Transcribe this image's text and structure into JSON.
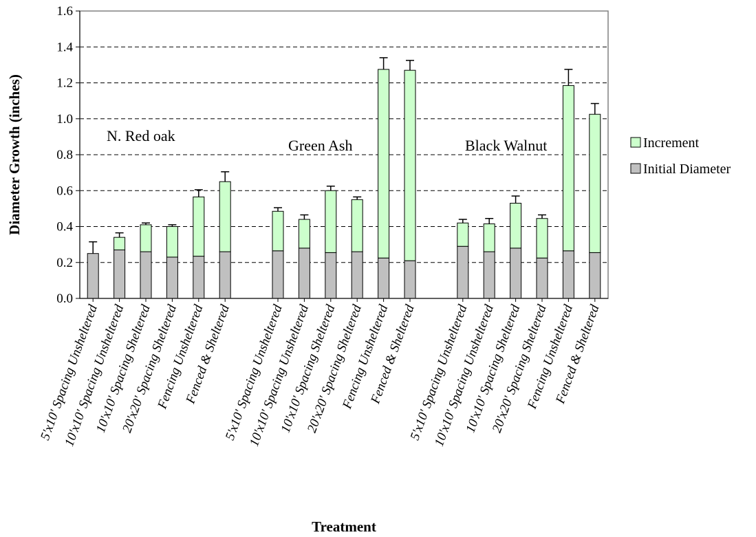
{
  "chart_data": {
    "type": "bar",
    "stacked": true,
    "xlabel": "Treatment",
    "ylabel": "Diameter Growth (inches)",
    "ylim": [
      0,
      1.6
    ],
    "yticks": [
      "0.0",
      "0.2",
      "0.4",
      "0.6",
      "0.8",
      "1.0",
      "1.2",
      "1.4",
      "1.6"
    ],
    "grid": "horizontal dashed",
    "legend_position": "right",
    "groups": [
      {
        "label": "N. Red oak",
        "categories": [
          "5'x10' Spacing Unsheltered",
          "10'x10' Spacing Unsheltered",
          "10'x10' Spacing Sheltered",
          "20'x20' Spacing Sheltered",
          "Fencing Unsheltered",
          "Fenced & Sheltered"
        ],
        "initial": [
          0.25,
          0.27,
          0.26,
          0.23,
          0.235,
          0.26
        ],
        "increment": [
          0.0,
          0.07,
          0.15,
          0.17,
          0.33,
          0.39
        ],
        "error": [
          0.065,
          0.025,
          0.01,
          0.01,
          0.04,
          0.055
        ]
      },
      {
        "label": "Green Ash",
        "categories": [
          "5'x10' Spacing Unsheltered",
          "10'x10' Spacing Unsheltered",
          "10'x10' Spacing Sheltered",
          "20'x20' Spacing Sheltered",
          "Fencing Unsheltered",
          "Fenced & Sheltered"
        ],
        "initial": [
          0.265,
          0.28,
          0.255,
          0.26,
          0.225,
          0.21
        ],
        "increment": [
          0.22,
          0.16,
          0.345,
          0.29,
          1.05,
          1.06
        ],
        "error": [
          0.02,
          0.025,
          0.025,
          0.015,
          0.065,
          0.055
        ]
      },
      {
        "label": "Black Walnut",
        "categories": [
          "5'x10' Spacing Unsheltered",
          "10'x10' Spacing Unsheltered",
          "10'x10' Spacing Sheltered",
          "20'x20' Spacing Sheltered",
          "Fencing Unsheltered",
          "Fenced & Sheltered"
        ],
        "initial": [
          0.29,
          0.26,
          0.28,
          0.225,
          0.265,
          0.255
        ],
        "increment": [
          0.13,
          0.155,
          0.25,
          0.22,
          0.92,
          0.77
        ],
        "error": [
          0.02,
          0.03,
          0.04,
          0.02,
          0.09,
          0.06
        ]
      }
    ],
    "series": [
      {
        "name": "Increment",
        "color": "#ccffcc"
      },
      {
        "name": "Initial Diameter",
        "color": "#c0c0c0"
      }
    ]
  }
}
